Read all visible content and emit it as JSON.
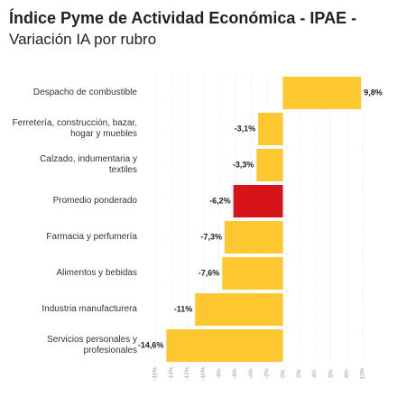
{
  "chart_data": {
    "type": "bar",
    "orientation": "horizontal",
    "title": "Índice Pyme de Actividad Económica - IPAE -",
    "subtitle": "Variación IA por rubro",
    "categories": [
      "Despacho de combustible",
      "Ferretería, construcción, bazar, hogar y muebles",
      "Calzado, indumentaria y textiles",
      "Promedio ponderado",
      "Farmacia y perfumería",
      "Alimentos y bebidas",
      "Industria manufacturera",
      "Servicios personales y profesionales"
    ],
    "values": [
      9.8,
      -3.1,
      -3.3,
      -6.2,
      -7.3,
      -7.6,
      -11,
      -14.6
    ],
    "value_labels": [
      "9,8%",
      "-3,1%",
      "-3,3%",
      "-6,2%",
      "-7,3%",
      "-7,6%",
      "-11%",
      "-14,6%"
    ],
    "colors": [
      "#fdc82f",
      "#fdc82f",
      "#fdc82f",
      "#d7141a",
      "#fdc82f",
      "#fdc82f",
      "#fdc82f",
      "#fdc82f"
    ],
    "xlim": [
      -16,
      10
    ],
    "xticks": [
      {
        "value": -16,
        "label": "-16%"
      },
      {
        "value": -14,
        "label": "-14%"
      },
      {
        "value": -12,
        "label": "-12%"
      },
      {
        "value": -10,
        "label": "-10%"
      },
      {
        "value": -8,
        "label": "-8%"
      },
      {
        "value": -6,
        "label": "-6%"
      },
      {
        "value": -4,
        "label": "-4%"
      },
      {
        "value": -2,
        "label": "-2%"
      },
      {
        "value": 0,
        "label": "0%"
      },
      {
        "value": 2,
        "label": "2%"
      },
      {
        "value": 4,
        "label": "4%"
      },
      {
        "value": 6,
        "label": "6%"
      },
      {
        "value": 8,
        "label": "8%"
      },
      {
        "value": 10,
        "label": "10%"
      }
    ],
    "grid": true
  }
}
